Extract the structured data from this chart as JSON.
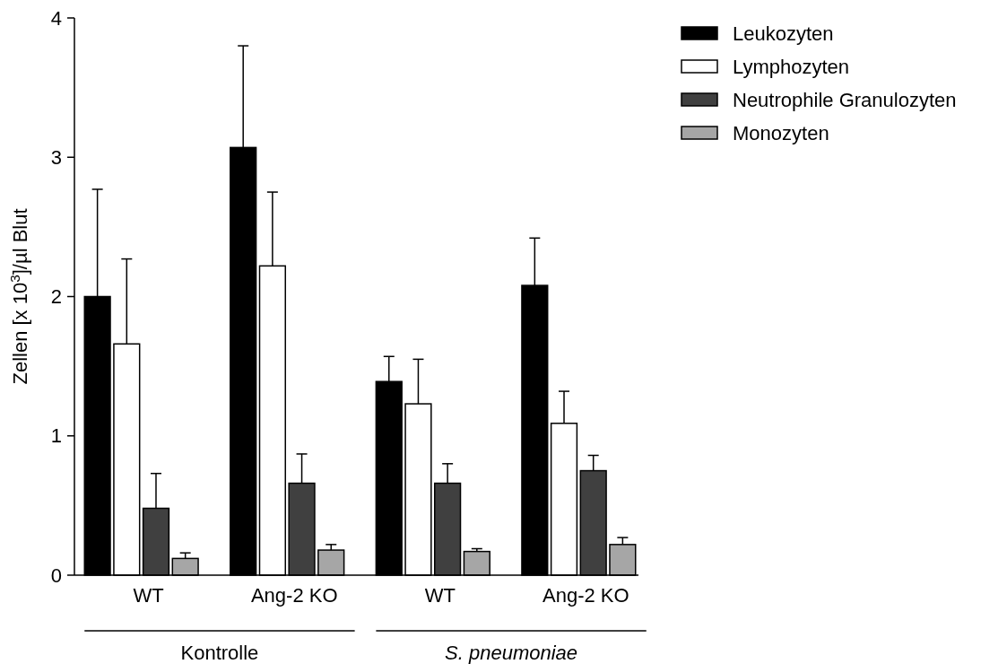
{
  "chart_data": {
    "type": "bar",
    "ylabel": "Zellen [x 10$^{3}$]/µl Blut",
    "categories": [
      "WT",
      "Ang-2 KO",
      "WT",
      "Ang-2 KO"
    ],
    "series": [
      {
        "name": "Leukozyten",
        "color": "#000000",
        "values": [
          2.0,
          3.07,
          1.39,
          2.08
        ],
        "errors": [
          [
            2.0,
            2.77
          ],
          [
            3.07,
            3.8
          ],
          [
            1.39,
            1.57
          ],
          [
            2.08,
            2.42
          ]
        ]
      },
      {
        "name": "Lymphozyten",
        "color": "#ffffff",
        "values": [
          1.66,
          2.22,
          1.23,
          1.09
        ],
        "errors": [
          [
            1.66,
            2.27
          ],
          [
            2.22,
            2.75
          ],
          [
            1.23,
            1.55
          ],
          [
            1.09,
            1.32
          ]
        ]
      },
      {
        "name": "Neutrophile Granulozyten",
        "color": "#404040",
        "values": [
          0.48,
          0.66,
          0.66,
          0.75
        ],
        "errors": [
          [
            0.48,
            0.73
          ],
          [
            0.66,
            0.87
          ],
          [
            0.66,
            0.8
          ],
          [
            0.75,
            0.86
          ]
        ]
      },
      {
        "name": "Monozyten",
        "color": "#a6a6a6",
        "values": [
          0.12,
          0.18,
          0.17,
          0.22
        ],
        "errors": [
          [
            0.12,
            0.16
          ],
          [
            0.18,
            0.22
          ],
          [
            0.17,
            0.19
          ],
          [
            0.22,
            0.27
          ]
        ]
      }
    ],
    "annotations": [
      "Kontrolle",
      "S. pneumoniae"
    ],
    "ylim": [
      0,
      4
    ],
    "yticks": [
      0,
      1,
      2,
      3,
      4
    ],
    "grid": false,
    "legend": "top right"
  }
}
